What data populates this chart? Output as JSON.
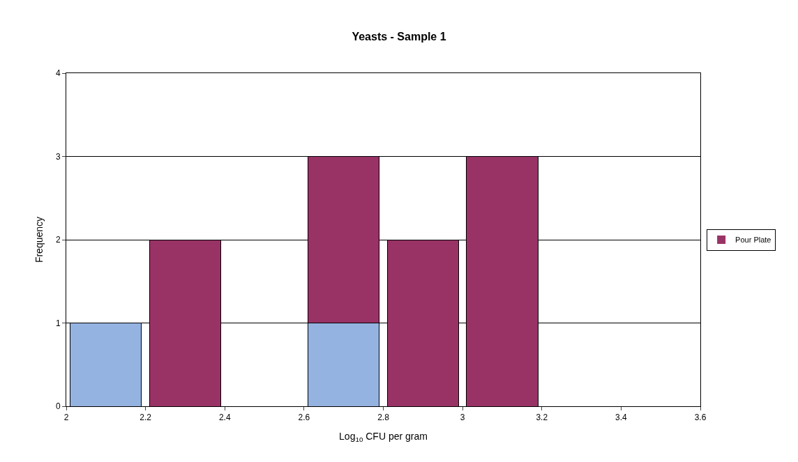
{
  "chart_data": {
    "type": "bar",
    "title": "Yeasts - Sample 1",
    "xlabel": "Log$_{10}$ CFU per gram",
    "ylabel": "Frequency",
    "stacked": true,
    "x": [
      2.1,
      2.3,
      2.7,
      2.9,
      3.1
    ],
    "series": [
      {
        "color": "#95b3e0",
        "values": [
          1,
          0,
          1,
          0,
          0
        ]
      },
      {
        "name": "Pour Plate",
        "color": "#993366",
        "values": [
          0,
          2,
          2,
          2,
          3
        ]
      }
    ],
    "xlim": [
      2,
      3.6
    ],
    "xticks": [
      2,
      2.2,
      2.4,
      2.6,
      2.8,
      3,
      3.2,
      3.4,
      3.6
    ],
    "ylim": [
      0,
      4
    ],
    "yticks": [
      0,
      1,
      2,
      3,
      4
    ],
    "grid": "y",
    "legend": "right"
  }
}
